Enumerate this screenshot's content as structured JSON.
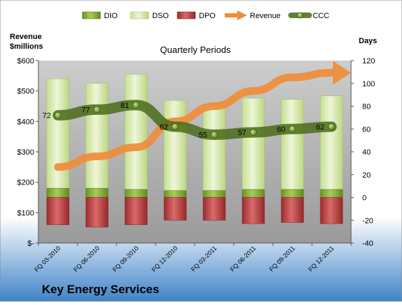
{
  "chart_data": {
    "type": "bar",
    "title": "Quarterly Periods",
    "company": "Key Energy Services",
    "categories": [
      "FQ 03-2010",
      "FQ 06-2010",
      "FQ 09-2010",
      "FQ 12-2010",
      "FQ 03-2011",
      "FQ 06-2011",
      "FQ 09-2011",
      "FQ 12-2011"
    ],
    "left_axis": {
      "label_line1": "Revenue",
      "label_line2": "$millions",
      "min": 0,
      "max": 600,
      "step": 100,
      "tick_labels": [
        "$-",
        "$100",
        "$200",
        "$300",
        "$400",
        "$500",
        "$600"
      ]
    },
    "right_axis": {
      "label": "Days",
      "min": -40,
      "max": 120,
      "step": 20,
      "tick_labels": [
        "-40",
        "-20",
        "0",
        "20",
        "40",
        "60",
        "80",
        "100",
        "120"
      ]
    },
    "series": [
      {
        "name": "DIO",
        "axis": "right",
        "kind": "stacked-bar",
        "values": [
          8,
          8,
          7,
          6,
          6,
          7,
          7,
          7
        ],
        "color": "#7aa52f"
      },
      {
        "name": "DSO",
        "axis": "right",
        "kind": "stacked-bar",
        "values": [
          96,
          92,
          101,
          79,
          75,
          80,
          79,
          82
        ],
        "color": "#d5e8a8"
      },
      {
        "name": "DPO",
        "axis": "right",
        "kind": "negative-bar",
        "values": [
          -24,
          -26,
          -24,
          -20,
          -20,
          -23,
          -22,
          -23
        ],
        "color": "#c0393b"
      },
      {
        "name": "Revenue",
        "axis": "left",
        "kind": "arrow-line",
        "values": [
          250,
          285,
          315,
          400,
          450,
          500,
          545,
          560
        ],
        "color": "#f08c3a"
      },
      {
        "name": "CCC",
        "axis": "right",
        "kind": "line",
        "values": [
          72,
          77,
          81,
          62,
          55,
          57,
          60,
          62
        ],
        "labels": [
          "72",
          "77",
          "81",
          "62",
          "55",
          "57",
          "60",
          "62"
        ],
        "color": "#4a6b1a"
      }
    ],
    "legend": {
      "position": "top",
      "items": [
        "DIO",
        "DSO",
        "DPO",
        "Revenue",
        "CCC"
      ]
    },
    "grid": false
  }
}
